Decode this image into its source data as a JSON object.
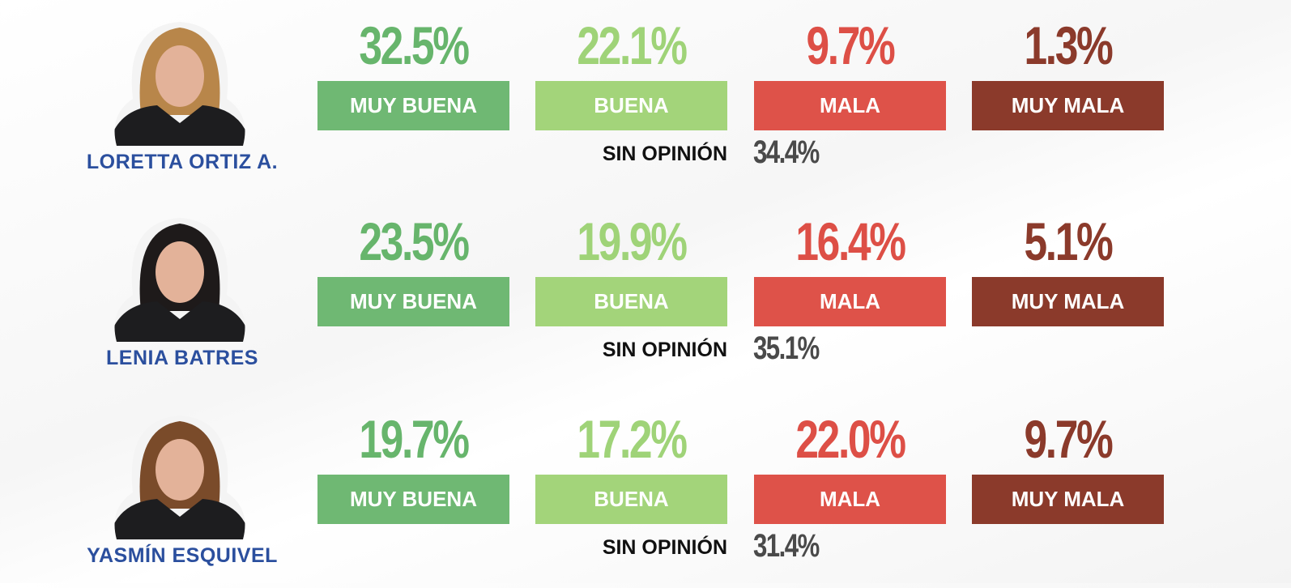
{
  "people": [
    {
      "name": "LORETTA ORTIZ A.",
      "ratings": [
        {
          "label": "MUY BUENA",
          "value": "32.5%"
        },
        {
          "label": "BUENA",
          "value": "22.1%"
        },
        {
          "label": "MALA",
          "value": "9.7%"
        },
        {
          "label": "MUY MALA",
          "value": "1.3%"
        }
      ],
      "no_opinion": {
        "label": "SIN OPINIÓN",
        "value": "34.4%"
      }
    },
    {
      "name": "LENIA BATRES",
      "ratings": [
        {
          "label": "MUY BUENA",
          "value": "23.5%"
        },
        {
          "label": "BUENA",
          "value": "19.9%"
        },
        {
          "label": "MALA",
          "value": "16.4%"
        },
        {
          "label": "MUY MALA",
          "value": "5.1%"
        }
      ],
      "no_opinion": {
        "label": "SIN OPINIÓN",
        "value": "35.1%"
      }
    },
    {
      "name": "YASMÍN ESQUIVEL",
      "ratings": [
        {
          "label": "MUY BUENA",
          "value": "19.7%"
        },
        {
          "label": "BUENA",
          "value": "17.2%"
        },
        {
          "label": "MALA",
          "value": "22.0%"
        },
        {
          "label": "MUY MALA",
          "value": "9.7%"
        }
      ],
      "no_opinion": {
        "label": "SIN OPINIÓN",
        "value": "31.4%"
      }
    }
  ]
}
